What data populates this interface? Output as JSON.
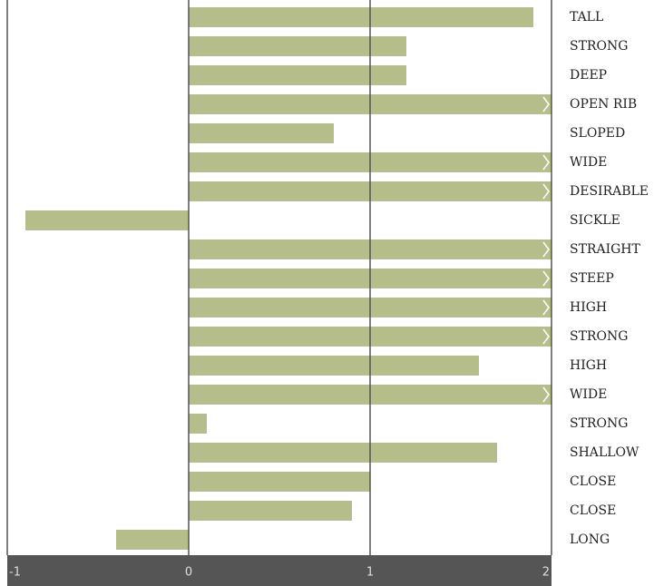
{
  "chart_data": {
    "type": "bar",
    "orientation": "horizontal",
    "categories": [
      "TALL",
      "STRONG",
      "DEEP",
      "OPEN RIB",
      "SLOPED",
      "WIDE",
      "DESIRABLE",
      "SICKLE",
      "STRAIGHT",
      "STEEP",
      "HIGH",
      "STRONG",
      "HIGH",
      "WIDE",
      "STRONG",
      "SHALLOW",
      "CLOSE",
      "CLOSE",
      "LONG"
    ],
    "values": [
      1.9,
      1.2,
      1.2,
      2,
      0.8,
      2,
      2,
      -0.9,
      2,
      2,
      2,
      2,
      1.6,
      2,
      0.1,
      1.7,
      1.0,
      0.9,
      -0.4
    ],
    "color": "#b5bd8a",
    "xlim": [
      -1,
      2
    ],
    "xticks": [
      -1,
      0,
      1,
      2
    ],
    "grid": true
  }
}
